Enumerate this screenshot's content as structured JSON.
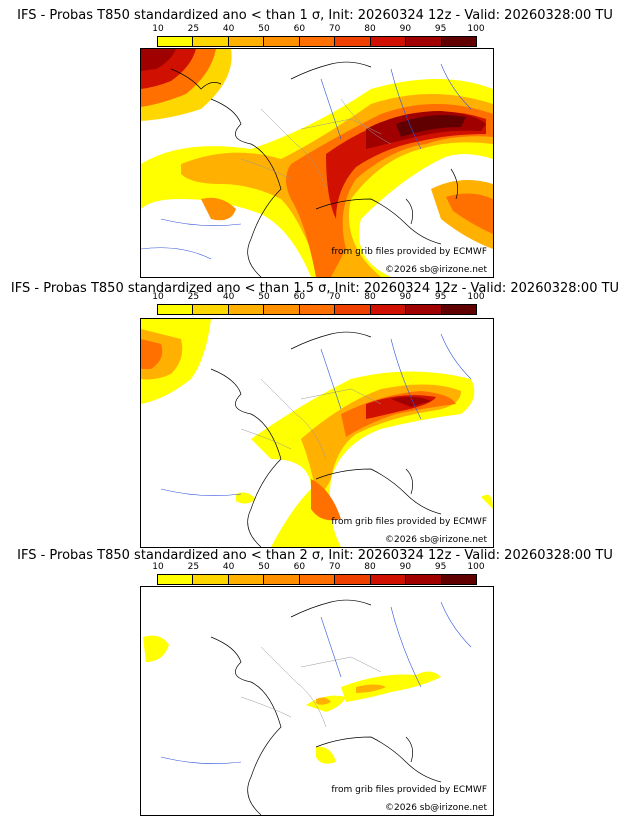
{
  "colorbar": {
    "ticks": [
      "10",
      "25",
      "40",
      "50",
      "60",
      "70",
      "80",
      "90",
      "95",
      "100"
    ],
    "colors": [
      "#ffff00",
      "#ffd700",
      "#ffb000",
      "#ff9000",
      "#ff7000",
      "#f04000",
      "#d01000",
      "#a00000",
      "#600000"
    ]
  },
  "panels": [
    {
      "title": "IFS - Probas T850  standardized ano < than 1 σ, Init: 20260324 12z - Valid: 20260328:00 TU",
      "credit_source": "from grib files provided by ECMWF",
      "credit_copyright": "©2026 sb@irizone.net"
    },
    {
      "title": "IFS - Probas T850  standardized ano < than 1.5 σ, Init: 20260324 12z - Valid: 20260328:00 TU",
      "credit_source": "from grib files provided by ECMWF",
      "credit_copyright": "©2026 sb@irizone.net"
    },
    {
      "title": "IFS - Probas T850  standardized ano < than 2 σ, Init: 20260324 12z - Valid: 20260328:00 TU",
      "credit_source": "from grib files provided by ECMWF",
      "credit_copyright": "©2026 sb@irizone.net"
    }
  ]
}
